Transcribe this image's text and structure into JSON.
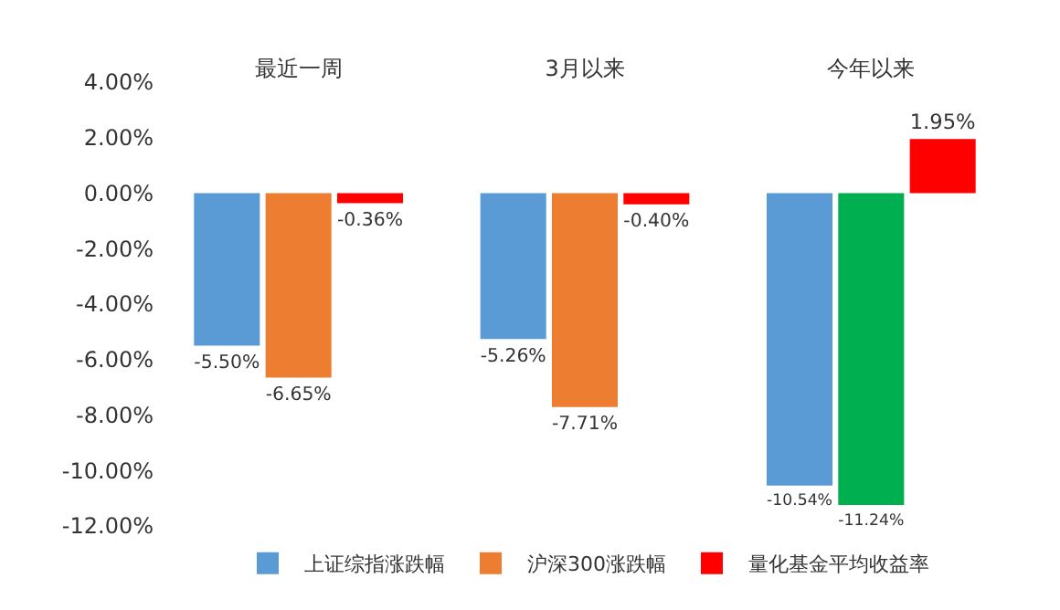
{
  "chart_data": {
    "type": "bar",
    "categories": [
      "最近一周",
      "3月以来",
      "今年以来"
    ],
    "series": [
      {
        "name": "上证综指涨跌幅",
        "color": "#5b9bd5",
        "values": [
          -5.5,
          -5.26,
          -10.54
        ],
        "value_labels": [
          "-5.50%",
          "-5.26%",
          "-10.54%"
        ]
      },
      {
        "name": "沪深300涨跌幅",
        "color": "#ed7d31",
        "colors": [
          "#ed7d31",
          "#ed7d31",
          "#00b050"
        ],
        "values": [
          -6.65,
          -7.71,
          -11.24
        ],
        "value_labels": [
          "-6.65%",
          "-7.71%",
          "-11.24%"
        ]
      },
      {
        "name": "量化基金平均收益率",
        "color": "#ff0000",
        "values": [
          -0.36,
          -0.4,
          1.95
        ],
        "value_labels": [
          "-0.36%",
          "-0.40%",
          "1.95%"
        ]
      }
    ],
    "ylim": [
      -12,
      4
    ],
    "yticks": [
      {
        "value": 4,
        "label": "4.00%"
      },
      {
        "value": 2,
        "label": "2.00%"
      },
      {
        "value": 0,
        "label": "0.00%"
      },
      {
        "value": -2,
        "label": "-2.00%"
      },
      {
        "value": -4,
        "label": "-4.00%"
      },
      {
        "value": -6,
        "label": "-6.00%"
      },
      {
        "value": -8,
        "label": "-8.00%"
      },
      {
        "value": -10,
        "label": "-10.00%"
      },
      {
        "value": -12,
        "label": "-12.00%"
      }
    ],
    "legend": "bottom"
  }
}
